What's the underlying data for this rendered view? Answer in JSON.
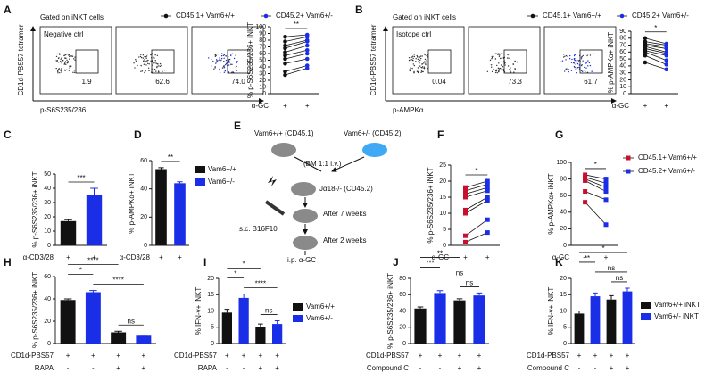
{
  "panel_letters": [
    "A",
    "B",
    "C",
    "D",
    "E",
    "F",
    "G",
    "H",
    "I",
    "J",
    "K"
  ],
  "flow": [
    {
      "gate_label": "Gated on iNKT cells",
      "control": "Negative ctrl",
      "ylabel": "CD1d-PBS57 tetramer",
      "xlabel": "p-S6S235/236",
      "gates": [
        "1.9",
        "62.6",
        "74.0"
      ]
    },
    {
      "gate_label": "Gated on iNKT cells",
      "control": "Isotope ctrl",
      "ylabel": "CD1d-PBS57 tetramer",
      "xlabel": "p-AMPKα",
      "gates": [
        "0.04",
        "73.3",
        "61.7"
      ]
    }
  ],
  "schematic": {
    "donor_wt": "Vam6+/+ (CD45.1)",
    "donor_het": "Vam6+/- (CD45.2)",
    "transfer": "(BM 1:1 i.v.)",
    "recipient": "Jα18-/- (CD45.2)",
    "wait1": "After 7 weeks",
    "tumor": "s.c. B16F10",
    "wait2": "After 2 weeks",
    "injection": "i.p. α-GC"
  },
  "chart_data": [
    {
      "type": "paired",
      "ylabel": "% p-S6S235/236+ iNKT",
      "ylim": [
        0,
        100
      ],
      "yticks": [
        0,
        10,
        20,
        30,
        40,
        50,
        60,
        70,
        80,
        90,
        100
      ],
      "marker": "circle",
      "series": [
        {
          "name": "CD45.1+ Vam6+/+",
          "color": "#111111",
          "values": [
            28,
            33,
            45,
            52,
            57,
            62,
            68,
            72,
            78,
            85
          ]
        },
        {
          "name": "CD45.2+ Vam6+/-",
          "color": "#1a2ee8",
          "values": [
            38,
            42,
            52,
            60,
            65,
            72,
            78,
            80,
            85,
            88
          ]
        }
      ],
      "conditions": [
        {
          "label": "α-GC",
          "values": [
            "+",
            "+"
          ]
        }
      ],
      "annotations": [
        {
          "text": "**",
          "between": [
            0,
            1
          ]
        }
      ]
    },
    {
      "type": "paired",
      "ylabel": "% p-AMPKα+ iNKT",
      "ylim": [
        0,
        90
      ],
      "yticks": [
        0,
        10,
        20,
        30,
        40,
        50,
        60,
        70,
        80,
        90
      ],
      "marker": "circle",
      "series": [
        {
          "name": "CD45.1+ Vam6+/+",
          "color": "#111111",
          "values": [
            45,
            55,
            60,
            62,
            65,
            68,
            70,
            72,
            75,
            80
          ]
        },
        {
          "name": "CD45.2+ Vam6+/-",
          "color": "#1a2ee8",
          "values": [
            35,
            42,
            48,
            55,
            58,
            60,
            65,
            68,
            70,
            72
          ]
        }
      ],
      "conditions": [
        {
          "label": "α-GC",
          "values": [
            "+",
            "+"
          ]
        }
      ],
      "annotations": [
        {
          "text": "*",
          "between": [
            0,
            1
          ]
        }
      ]
    },
    {
      "type": "bar",
      "ylabel": "% p-S6S235/236+ iNKT",
      "ylim": [
        0,
        50
      ],
      "yticks": [
        0,
        10,
        20,
        30,
        40,
        50
      ],
      "series": [
        {
          "color": "#111111",
          "values": [
            17,
            null
          ],
          "errors": [
            1,
            null
          ]
        },
        {
          "color": "#1a2ee8",
          "values": [
            null,
            35
          ],
          "errors": [
            null,
            5
          ]
        }
      ],
      "conditions": [
        {
          "label": "α-CD3/28",
          "values": [
            "+",
            "+"
          ]
        }
      ],
      "annotations": [
        {
          "text": "***",
          "between": [
            0,
            1
          ]
        }
      ]
    },
    {
      "type": "bar",
      "ylabel": "% p-AMPKα+ iNKT",
      "ylim": [
        0,
        60
      ],
      "yticks": [
        0,
        20,
        40,
        60
      ],
      "series": [
        {
          "name": "Vam6+/+",
          "color": "#111111",
          "values": [
            54,
            null
          ],
          "errors": [
            1,
            null
          ]
        },
        {
          "name": "Vam6+/-",
          "color": "#1a2ee8",
          "values": [
            null,
            44
          ],
          "errors": [
            null,
            1
          ]
        }
      ],
      "conditions": [
        {
          "label": "α-CD3/28",
          "values": [
            "+",
            "+"
          ]
        }
      ],
      "annotations": [
        {
          "text": "**",
          "between": [
            0,
            1
          ]
        }
      ]
    },
    {
      "type": "paired",
      "ylabel": "% p-S6S235/236+ iNKT",
      "ylim": [
        0,
        25
      ],
      "yticks": [
        0,
        5,
        10,
        15,
        20,
        25
      ],
      "marker": "square",
      "series": [
        {
          "color": "#c8102e",
          "values": [
            1,
            3,
            10,
            11,
            15,
            16,
            17,
            18
          ]
        },
        {
          "color": "#1a2ee8",
          "values": [
            4,
            8,
            14,
            15,
            17,
            18,
            19,
            20
          ]
        }
      ],
      "conditions": [
        {
          "label": "α-GC",
          "values": [
            "+",
            "+"
          ]
        }
      ],
      "annotations": [
        {
          "text": "*",
          "between": [
            0,
            1
          ]
        }
      ]
    },
    {
      "type": "paired",
      "ylabel": "% p-AMPKα+ iNKT",
      "ylim": [
        0,
        100
      ],
      "yticks": [
        0,
        20,
        40,
        60,
        80,
        100
      ],
      "marker": "square",
      "series": [
        {
          "name": "CD45.1+ Vam6+/+",
          "color": "#c8102e",
          "values": [
            52,
            65,
            78,
            80,
            82,
            85
          ]
        },
        {
          "name": "CD45.2+ Vam6+/-",
          "color": "#1a2ee8",
          "values": [
            25,
            55,
            65,
            70,
            75,
            80
          ]
        }
      ],
      "conditions": [
        {
          "label": "α-GC",
          "values": [
            "+",
            "+"
          ]
        }
      ],
      "annotations": [
        {
          "text": "*",
          "between": [
            0,
            1
          ]
        }
      ]
    },
    {
      "type": "bar",
      "ylabel": "% p-S6S235/236+ iNKT",
      "ylim": [
        0,
        60
      ],
      "yticks": [
        0,
        20,
        40,
        60
      ],
      "series": [
        {
          "color": "#111111",
          "values": [
            39,
            null,
            10,
            null
          ],
          "errors": [
            1,
            null,
            1,
            null
          ]
        },
        {
          "color": "#1a2ee8",
          "values": [
            null,
            46,
            null,
            7
          ],
          "errors": [
            null,
            1.5,
            null,
            0.5
          ]
        }
      ],
      "conditions": [
        {
          "label": "CD1d-PBS57",
          "values": [
            "+",
            "+",
            "+",
            "+"
          ]
        },
        {
          "label": "RAPA",
          "values": [
            "-",
            "-",
            "+",
            "+"
          ]
        }
      ],
      "annotations": [
        {
          "text": "****",
          "between": [
            0,
            2
          ]
        },
        {
          "text": "*",
          "between": [
            0,
            1
          ]
        },
        {
          "text": "****",
          "between": [
            1,
            3
          ]
        },
        {
          "text": "ns",
          "between": [
            2,
            3
          ]
        }
      ]
    },
    {
      "type": "bar",
      "ylabel": "% IFN-γ+ iNKT",
      "ylim": [
        0,
        20
      ],
      "yticks": [
        0,
        5,
        10,
        15,
        20
      ],
      "series": [
        {
          "name": "Vam6+/+",
          "color": "#111111",
          "values": [
            9.5,
            null,
            5,
            null
          ],
          "errors": [
            1,
            null,
            1,
            null
          ]
        },
        {
          "name": "Vam6+/-",
          "color": "#1a2ee8",
          "values": [
            null,
            14,
            null,
            6
          ],
          "errors": [
            null,
            1.2,
            null,
            1
          ]
        }
      ],
      "conditions": [
        {
          "label": "CD1d-PBS57",
          "values": [
            "+",
            "+",
            "+",
            "+"
          ]
        },
        {
          "label": "RAPA",
          "values": [
            "-",
            "-",
            "+",
            "+"
          ]
        }
      ],
      "annotations": [
        {
          "text": "*",
          "between": [
            0,
            2
          ]
        },
        {
          "text": "*",
          "between": [
            0,
            1
          ]
        },
        {
          "text": "****",
          "between": [
            1,
            3
          ]
        },
        {
          "text": "ns",
          "between": [
            2,
            3
          ]
        }
      ]
    },
    {
      "type": "bar",
      "ylabel": "% p-S6S235/236+ iNKT",
      "ylim": [
        0,
        80
      ],
      "yticks": [
        0,
        20,
        40,
        60,
        80
      ],
      "series": [
        {
          "color": "#111111",
          "values": [
            43,
            null,
            53,
            null
          ],
          "errors": [
            2,
            null,
            2,
            null
          ]
        },
        {
          "color": "#1a2ee8",
          "values": [
            null,
            62,
            null,
            59
          ],
          "errors": [
            null,
            3,
            null,
            3
          ]
        }
      ],
      "conditions": [
        {
          "label": "CD1d-PBS57",
          "values": [
            "+",
            "+",
            "+",
            "+"
          ]
        },
        {
          "label": "Compound C",
          "values": [
            "-",
            "-",
            "+",
            "+"
          ]
        }
      ],
      "annotations": [
        {
          "text": "**",
          "between": [
            0,
            2
          ]
        },
        {
          "text": "***",
          "between": [
            0,
            1
          ]
        },
        {
          "text": "ns",
          "between": [
            1,
            3
          ]
        },
        {
          "text": "ns",
          "between": [
            2,
            3
          ]
        }
      ]
    },
    {
      "type": "bar",
      "ylabel": "% IFN-γ+ iNKT",
      "ylim": [
        0,
        20
      ],
      "yticks": [
        0,
        5,
        10,
        15,
        20
      ],
      "series": [
        {
          "name": "Vam6+/+ iNKT",
          "color": "#111111",
          "values": [
            9.2,
            null,
            13.5,
            null
          ],
          "errors": [
            0.8,
            null,
            1.2,
            null
          ]
        },
        {
          "name": "Vam6+/- iNKT",
          "color": "#1a2ee8",
          "values": [
            null,
            14.5,
            null,
            16
          ],
          "errors": [
            null,
            1,
            null,
            1
          ]
        }
      ],
      "conditions": [
        {
          "label": "CD1d-PBS57",
          "values": [
            "+",
            "+",
            "+",
            "+"
          ]
        },
        {
          "label": "Compound C",
          "values": [
            "-",
            "-",
            "+",
            "+"
          ]
        }
      ],
      "annotations": [
        {
          "text": "*",
          "between": [
            0,
            3
          ]
        },
        {
          "text": "**",
          "between": [
            0,
            1
          ]
        },
        {
          "text": "ns",
          "between": [
            1,
            3
          ]
        },
        {
          "text": "ns",
          "between": [
            2,
            3
          ]
        }
      ]
    }
  ]
}
